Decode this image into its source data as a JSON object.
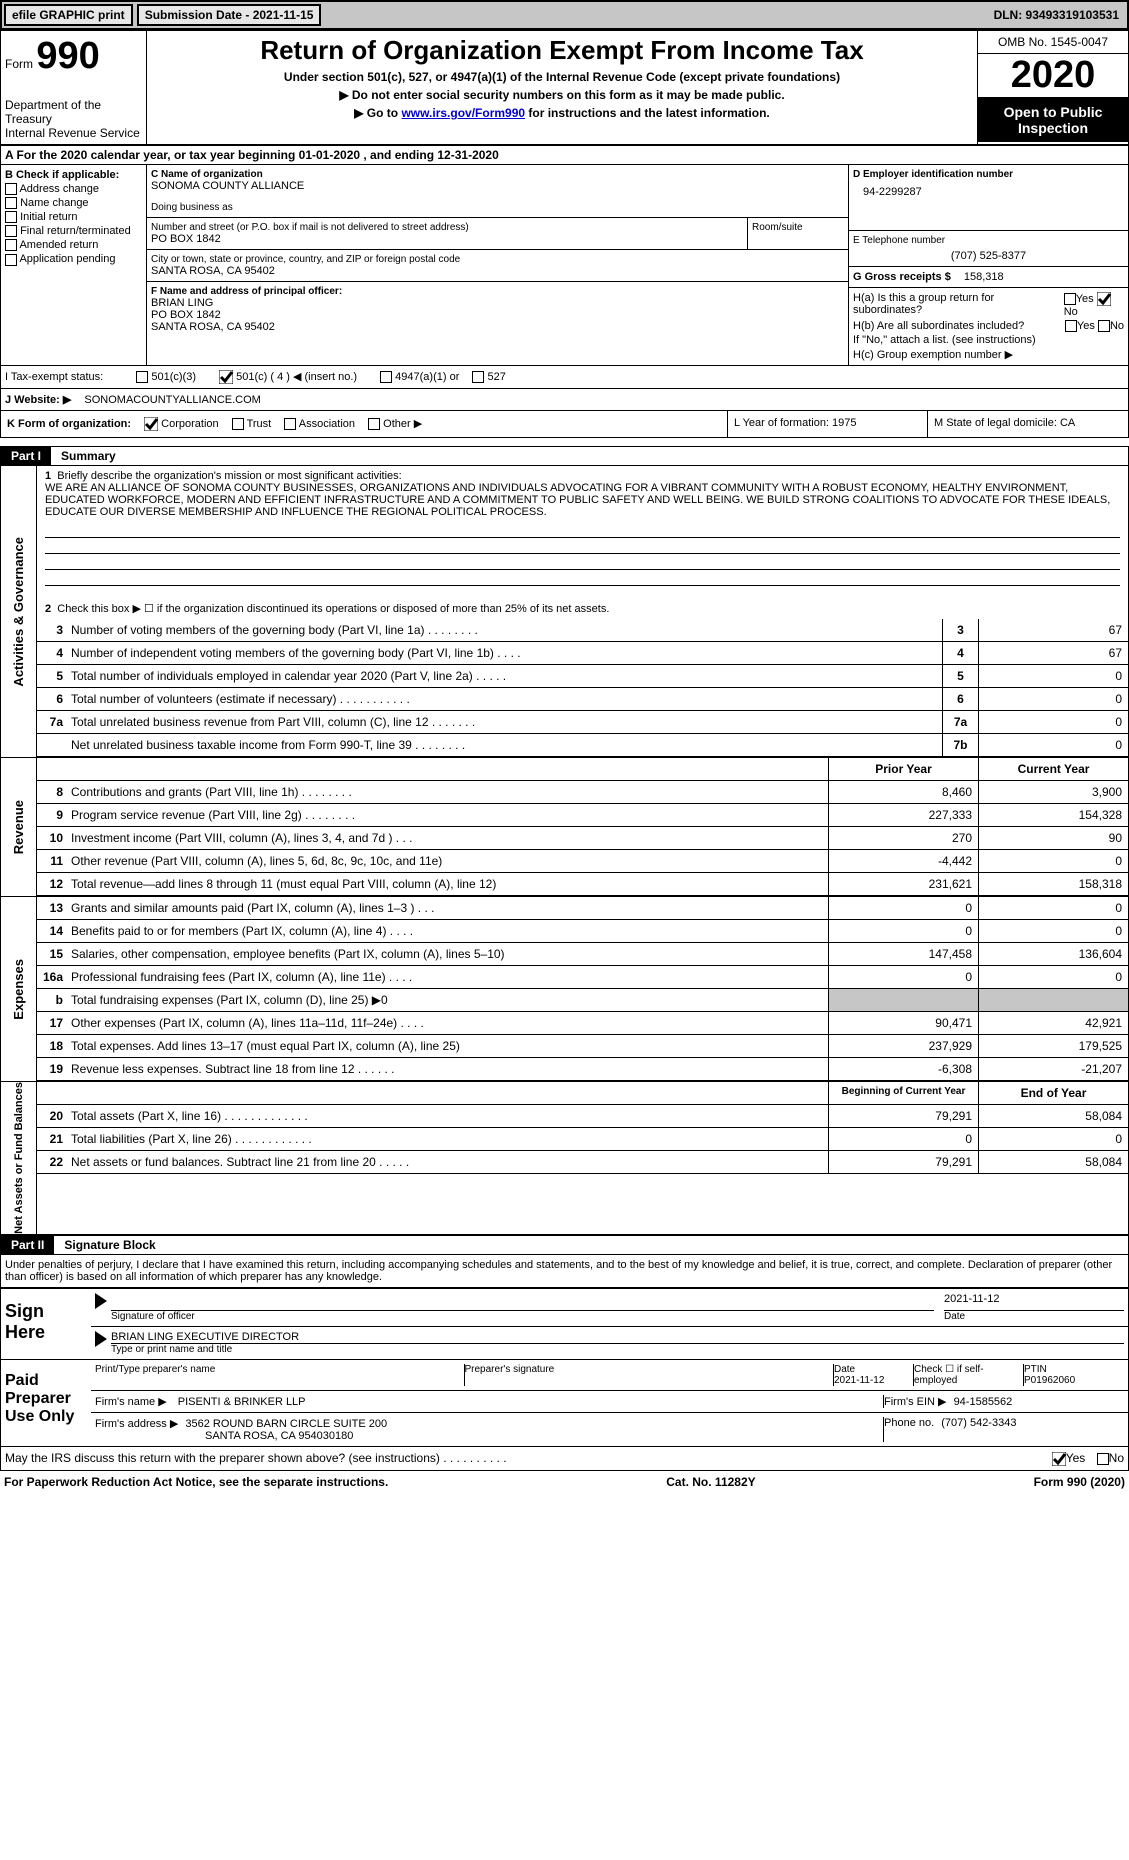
{
  "topbar": {
    "efile": "efile GRAPHIC print",
    "submission_label": "Submission Date - 2021-11-15",
    "dln_label": "DLN: 93493319103531"
  },
  "header": {
    "form_word": "Form",
    "form_number": "990",
    "dept": "Department of the Treasury\nInternal Revenue Service",
    "title": "Return of Organization Exempt From Income Tax",
    "subtitle": "Under section 501(c), 527, or 4947(a)(1) of the Internal Revenue Code (except private foundations)",
    "note1": "▶ Do not enter social security numbers on this form as it may be made public.",
    "note2_pre": "▶ Go to ",
    "note2_link": "www.irs.gov/Form990",
    "note2_post": " for instructions and the latest information.",
    "omb": "OMB No. 1545-0047",
    "year": "2020",
    "open": "Open to Public Inspection"
  },
  "section_a": "A For the 2020 calendar year, or tax year beginning 01-01-2020    , and ending 12-31-2020",
  "col_b": {
    "header": "B Check if applicable:",
    "items": [
      "Address change",
      "Name change",
      "Initial return",
      "Final return/terminated",
      "Amended return",
      "Application pending"
    ]
  },
  "col_c": {
    "name_label": "C Name of organization",
    "name": "SONOMA COUNTY ALLIANCE",
    "dba_label": "Doing business as",
    "addr_label": "Number and street (or P.O. box if mail is not delivered to street address)",
    "addr": "PO BOX 1842",
    "room_label": "Room/suite",
    "city_label": "City or town, state or province, country, and ZIP or foreign postal code",
    "city": "SANTA ROSA, CA   95402",
    "f_label": "F Name and address of principal officer:",
    "f_name": "BRIAN LING",
    "f_addr1": "PO BOX 1842",
    "f_addr2": "SANTA ROSA, CA   95402"
  },
  "col_d": {
    "ein_label": "D Employer identification number",
    "ein": "94-2299287",
    "tel_label": "E Telephone number",
    "tel": "(707) 525-8377",
    "g_label": "G Gross receipts $",
    "g_val": "158,318",
    "ha": "H(a)  Is this a group return for subordinates?",
    "hb": "H(b)  Are all subordinates included?",
    "hb_note": "If \"No,\" attach a list. (see instructions)",
    "hc": "H(c)  Group exemption number ▶",
    "yes": "Yes",
    "no": "No"
  },
  "row_i": {
    "label": "I   Tax-exempt status:",
    "opts": [
      "501(c)(3)",
      "501(c) ( 4 ) ◀ (insert no.)",
      "4947(a)(1) or",
      "527"
    ]
  },
  "row_j": {
    "label": "J   Website: ▶",
    "value": "SONOMACOUNTYALLIANCE.COM"
  },
  "row_k": {
    "label": "K Form of organization:",
    "opts": [
      "Corporation",
      "Trust",
      "Association",
      "Other ▶"
    ],
    "l": "L Year of formation: 1975",
    "m": "M State of legal domicile: CA"
  },
  "part1": {
    "hdr": "Part I",
    "title": "Summary"
  },
  "summary": {
    "verts": [
      "Activities & Governance",
      "Revenue",
      "Expenses",
      "Net Assets or Fund Balances"
    ],
    "line1_label": "Briefly describe the organization's mission or most significant activities:",
    "mission": "WE ARE AN ALLIANCE OF SONOMA COUNTY BUSINESSES, ORGANIZATIONS AND INDIVIDUALS ADVOCATING FOR A VIBRANT COMMUNITY WITH A ROBUST ECONOMY, HEALTHY ENVIRONMENT, EDUCATED WORKFORCE, MODERN AND EFFICIENT INFRASTRUCTURE AND A COMMITMENT TO PUBLIC SAFETY AND WELL BEING. WE BUILD STRONG COALITIONS TO ADVOCATE FOR THESE IDEALS, EDUCATE OUR DIVERSE MEMBERSHIP AND INFLUENCE THE REGIONAL POLITICAL PROCESS.",
    "line2": "Check this box ▶ ☐  if the organization discontinued its operations or disposed of more than 25% of its net assets.",
    "gov_lines": [
      {
        "n": "3",
        "label": "Number of voting members of the governing body (Part VI, line 1a)   .   .   .   .   .   .   .   .",
        "box": "3",
        "val": "67"
      },
      {
        "n": "4",
        "label": "Number of independent voting members of the governing body (Part VI, line 1b)   .   .   .   .",
        "box": "4",
        "val": "67"
      },
      {
        "n": "5",
        "label": "Total number of individuals employed in calendar year 2020 (Part V, line 2a)   .   .   .   .   .",
        "box": "5",
        "val": "0"
      },
      {
        "n": "6",
        "label": "Total number of volunteers (estimate if necessary)   .   .   .   .   .   .   .   .   .   .   .",
        "box": "6",
        "val": "0"
      },
      {
        "n": "7a",
        "label": "Total unrelated business revenue from Part VIII, column (C), line 12   .   .   .   .   .   .   .",
        "box": "7a",
        "val": "0"
      },
      {
        "n": "",
        "label": "Net unrelated business taxable income from Form 990-T, line 39   .   .   .   .   .   .   .   .",
        "box": "7b",
        "val": "0"
      }
    ],
    "col_hdr_prior": "Prior Year",
    "col_hdr_current": "Current Year",
    "rev_lines": [
      {
        "n": "8",
        "label": "Contributions and grants (Part VIII, line 1h)   .   .   .   .   .   .   .   .",
        "p": "8,460",
        "c": "3,900"
      },
      {
        "n": "9",
        "label": "Program service revenue (Part VIII, line 2g)   .   .   .   .   .   .   .   .",
        "p": "227,333",
        "c": "154,328"
      },
      {
        "n": "10",
        "label": "Investment income (Part VIII, column (A), lines 3, 4, and 7d )   .   .   .",
        "p": "270",
        "c": "90"
      },
      {
        "n": "11",
        "label": "Other revenue (Part VIII, column (A), lines 5, 6d, 8c, 9c, 10c, and 11e)",
        "p": "-4,442",
        "c": "0"
      },
      {
        "n": "12",
        "label": "Total revenue—add lines 8 through 11 (must equal Part VIII, column (A), line 12)",
        "p": "231,621",
        "c": "158,318"
      }
    ],
    "exp_lines": [
      {
        "n": "13",
        "label": "Grants and similar amounts paid (Part IX, column (A), lines 1–3 )   .   .   .",
        "p": "0",
        "c": "0"
      },
      {
        "n": "14",
        "label": "Benefits paid to or for members (Part IX, column (A), line 4)   .   .   .   .",
        "p": "0",
        "c": "0"
      },
      {
        "n": "15",
        "label": "Salaries, other compensation, employee benefits (Part IX, column (A), lines 5–10)",
        "p": "147,458",
        "c": "136,604"
      },
      {
        "n": "16a",
        "label": "Professional fundraising fees (Part IX, column (A), line 11e)   .   .   .   .",
        "p": "0",
        "c": "0"
      },
      {
        "n": "b",
        "label": "Total fundraising expenses (Part IX, column (D), line 25) ▶0",
        "p": "shade",
        "c": "shade"
      },
      {
        "n": "17",
        "label": "Other expenses (Part IX, column (A), lines 11a–11d, 11f–24e)   .   .   .   .",
        "p": "90,471",
        "c": "42,921"
      },
      {
        "n": "18",
        "label": "Total expenses. Add lines 13–17 (must equal Part IX, column (A), line 25)",
        "p": "237,929",
        "c": "179,525"
      },
      {
        "n": "19",
        "label": "Revenue less expenses. Subtract line 18 from line 12   .   .   .   .   .   .",
        "p": "-6,308",
        "c": "-21,207"
      }
    ],
    "col_hdr_begin": "Beginning of Current Year",
    "col_hdr_end": "End of Year",
    "net_lines": [
      {
        "n": "20",
        "label": "Total assets (Part X, line 16)   .   .   .   .   .   .   .   .   .   .   .   .   .",
        "p": "79,291",
        "c": "58,084"
      },
      {
        "n": "21",
        "label": "Total liabilities (Part X, line 26)   .   .   .   .   .   .   .   .   .   .   .   .",
        "p": "0",
        "c": "0"
      },
      {
        "n": "22",
        "label": "Net assets or fund balances. Subtract line 21 from line 20   .   .   .   .   .",
        "p": "79,291",
        "c": "58,084"
      }
    ]
  },
  "part2": {
    "hdr": "Part II",
    "title": "Signature Block",
    "penalty": "Under penalties of perjury, I declare that I have examined this return, including accompanying schedules and statements, and to the best of my knowledge and belief, it is true, correct, and complete. Declaration of preparer (other than officer) is based on all information of which preparer has any knowledge."
  },
  "sign": {
    "here": "Sign Here",
    "sig_officer": "Signature of officer",
    "date": "Date",
    "date_val": "2021-11-12",
    "name_val": "BRIAN LING  EXECUTIVE DIRECTOR",
    "name_label": "Type or print name and title"
  },
  "paid": {
    "label": "Paid Preparer Use Only",
    "print_label": "Print/Type preparer's name",
    "sig_label": "Preparer's signature",
    "date_label": "Date",
    "date_val": "2021-11-12",
    "check_label": "Check ☐ if self-employed",
    "ptin_label": "PTIN",
    "ptin": "P01962060",
    "firm_name_label": "Firm's name     ▶",
    "firm_name": "PISENTI & BRINKER LLP",
    "firm_ein_label": "Firm's EIN ▶",
    "firm_ein": "94-1585562",
    "firm_addr_label": "Firm's address ▶",
    "firm_addr1": "3562 ROUND BARN CIRCLE SUITE 200",
    "firm_addr2": "SANTA ROSA, CA   954030180",
    "phone_label": "Phone no.",
    "phone": "(707) 542-3343"
  },
  "discuss": "May the IRS discuss this return with the preparer shown above? (see instructions)   .   .   .   .   .   .   .   .   .   .",
  "footer": {
    "left": "For Paperwork Reduction Act Notice, see the separate instructions.",
    "mid": "Cat. No. 11282Y",
    "right": "Form 990 (2020)"
  }
}
